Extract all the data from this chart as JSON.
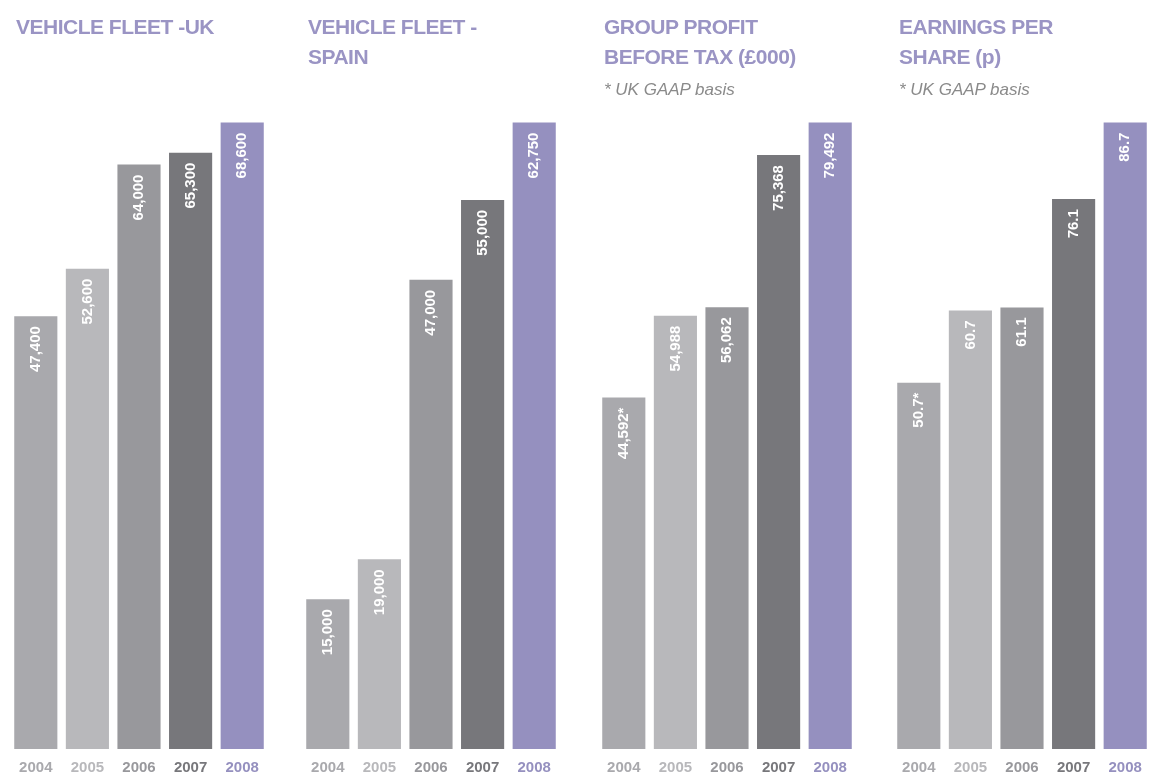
{
  "chart_data": [
    {
      "type": "bar",
      "title": "VEHICLE FLEET -UK",
      "categories": [
        "2004",
        "2005",
        "2006",
        "2007",
        "2008"
      ],
      "values": [
        47400,
        52600,
        64000,
        65300,
        68600
      ],
      "value_labels": [
        "47,400",
        "52,600",
        "64,000",
        "65,300",
        "68,600"
      ],
      "colors": [
        "#a9a9ad",
        "#b8b8bb",
        "#98989c",
        "#77777b",
        "#9590bf"
      ],
      "tick_labels": "x"
    },
    {
      "type": "bar",
      "title": "VEHICLE FLEET -SPAIN",
      "categories": [
        "2004",
        "2005",
        "2006",
        "2007",
        "2008"
      ],
      "values": [
        15000,
        19000,
        47000,
        55000,
        62750
      ],
      "value_labels": [
        "15,000",
        "19,000",
        "47,000",
        "55,000",
        "62,750"
      ],
      "colors": [
        "#a9a9ad",
        "#b8b8bb",
        "#98989c",
        "#77777b",
        "#9590bf"
      ],
      "tick_labels": "x"
    },
    {
      "type": "bar",
      "title": "GROUP PROFIT BEFORE TAX (£000)",
      "subtitle": "* UK GAAP basis",
      "categories": [
        "2004",
        "2005",
        "2006",
        "2007",
        "2008"
      ],
      "values": [
        44592,
        54988,
        56062,
        75368,
        79492
      ],
      "value_labels": [
        "44,592*",
        "54,988",
        "56,062",
        "75,368",
        "79,492"
      ],
      "colors": [
        "#a9a9ad",
        "#b8b8bb",
        "#98989c",
        "#77777b",
        "#9590bf"
      ],
      "tick_labels": "x"
    },
    {
      "type": "bar",
      "title": "EARNINGS PER SHARE (p)",
      "subtitle": "* UK GAAP basis",
      "categories": [
        "2004",
        "2005",
        "2006",
        "2007",
        "2008"
      ],
      "values": [
        50.7,
        60.7,
        61.1,
        76.1,
        86.7
      ],
      "value_labels": [
        "50.7*",
        "60.7",
        "61.1",
        "76.1",
        "86.7"
      ],
      "colors": [
        "#a9a9ad",
        "#b8b8bb",
        "#98989c",
        "#77777b",
        "#9590bf"
      ],
      "tick_labels": "x"
    }
  ]
}
